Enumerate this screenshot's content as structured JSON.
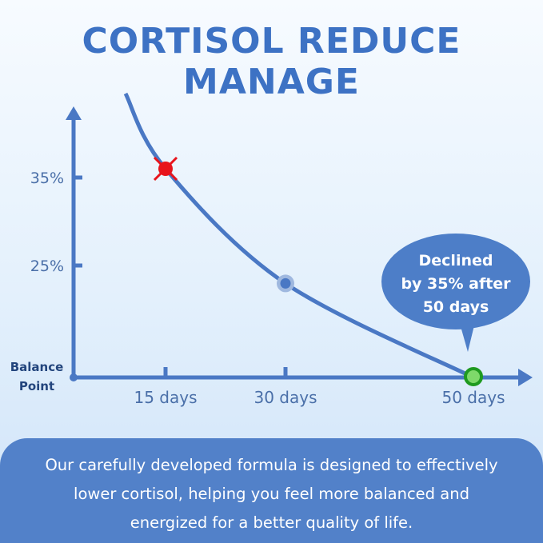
{
  "title": "CORTISOL REDUCE MANAGE",
  "chart_data": {
    "type": "line",
    "x_ticks": [
      {
        "value": 15,
        "label": "15 days"
      },
      {
        "value": 30,
        "label": "30 days"
      },
      {
        "value": 50,
        "label": "50 days"
      }
    ],
    "y_ticks": [
      {
        "value": 0,
        "label": "Balance Point"
      },
      {
        "value": 25,
        "label": "25%"
      },
      {
        "value": 35,
        "label": "35%"
      }
    ],
    "series": [
      {
        "x": [
          10,
          15,
          30,
          50
        ],
        "y": [
          44,
          36,
          21,
          0
        ]
      }
    ],
    "markers": [
      {
        "x": 15,
        "y": 36,
        "style": "red-x",
        "color": "#e8141c"
      },
      {
        "x": 30,
        "y": 21,
        "style": "blue-dot",
        "color": "#4a78c4"
      },
      {
        "x": 50,
        "y": 0,
        "style": "green-dot",
        "color": "#7ed96a"
      }
    ],
    "annotation": {
      "lines": [
        "Declined",
        "by 35% after",
        "50 days"
      ]
    },
    "line_color": "#4a78c4",
    "grid": false
  },
  "footer": {
    "lines": [
      "Our carefully developed formula is designed to effectively",
      "lower cortisol, helping you feel more balanced and",
      "energized for a better quality of life."
    ]
  }
}
